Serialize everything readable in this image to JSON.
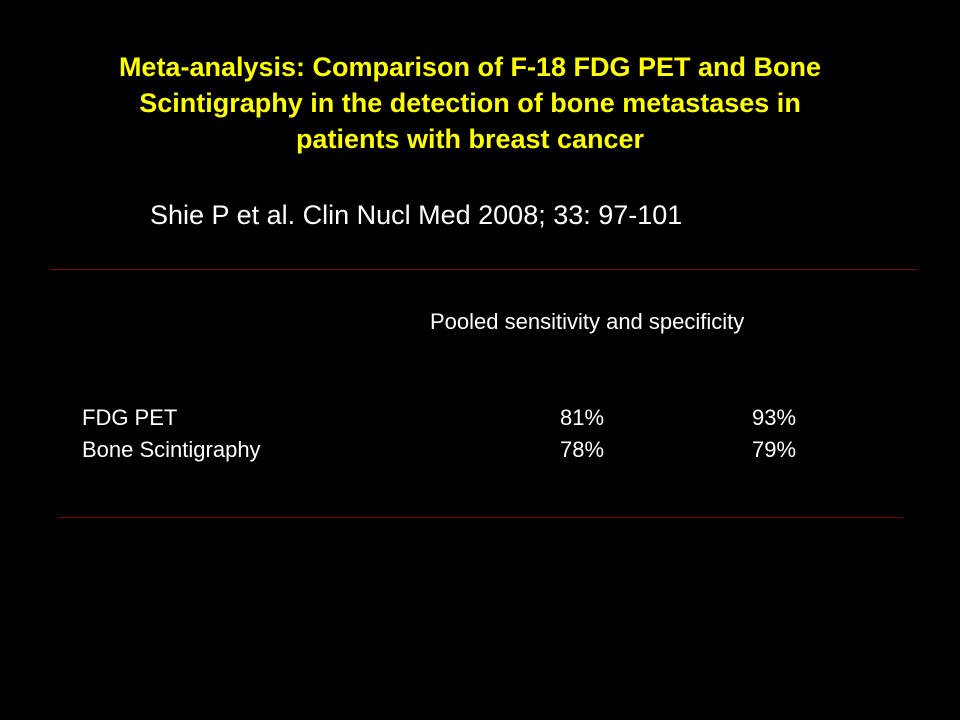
{
  "slide": {
    "title_lines": [
      "Meta-analysis: Comparison of F-18 FDG PET and Bone",
      "Scintigraphy in the detection of bone metastases in",
      "patients with breast cancer"
    ],
    "citation": "Shie P et al. Clin Nucl Med 2008; 33: 97-101",
    "table": {
      "header": "Pooled sensitivity and specificity",
      "rows": [
        [
          "FDG PET",
          "81%",
          "93%"
        ],
        [
          "Bone Scintigraphy",
          "78%",
          "79%"
        ]
      ]
    }
  }
}
